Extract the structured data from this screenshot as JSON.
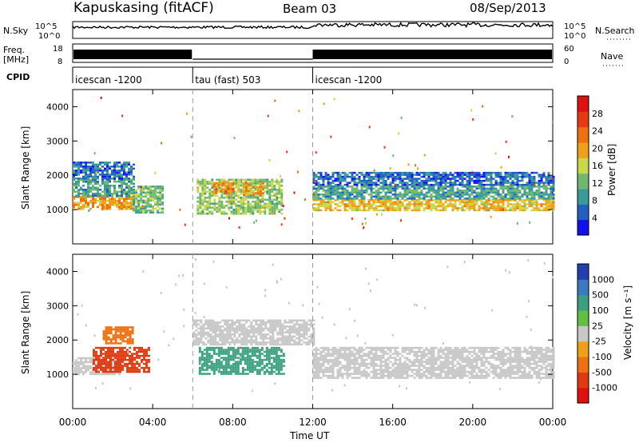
{
  "header": {
    "station": "Kapuskasing (fitACF)",
    "beam": "Beam 03",
    "date": "08/Sep/2013"
  },
  "noise_panel": {
    "left_label": "N.Sky",
    "right_label": "N.Search",
    "ticks_left": [
      "10^5",
      "10^0"
    ],
    "ticks_right": [
      "10^5",
      "10^0"
    ]
  },
  "freq_panel": {
    "left_label_line1": "Freq.",
    "left_label_line2": "[MHz]",
    "ticks_left": [
      "18",
      "8"
    ],
    "ticks_right": [
      "60",
      "0"
    ],
    "right_label": "Nave"
  },
  "cpid": {
    "label": "CPID",
    "segments": [
      {
        "name": "icescan -1200",
        "start_h": 0,
        "end_h": 6
      },
      {
        "name": "tau (fast) 503",
        "start_h": 6,
        "end_h": 12
      },
      {
        "name": "icescan -1200",
        "start_h": 12,
        "end_h": 24
      }
    ]
  },
  "x_axis": {
    "label": "Time UT",
    "ticks": [
      "00:00",
      "04:00",
      "08:00",
      "12:00",
      "16:00",
      "20:00",
      "00:00"
    ]
  },
  "power_panel": {
    "ylabel": "Slant Range [km]",
    "yticks": [
      "1000",
      "2000",
      "3000",
      "4000"
    ],
    "colorbar_label": "Power [dB]",
    "colorbar_ticks": [
      "4",
      "8",
      "12",
      "16",
      "20",
      "24",
      "28"
    ],
    "colors": [
      "#1010f0",
      "#2060c0",
      "#3a9a9a",
      "#6fb870",
      "#c8d84a",
      "#f0a018",
      "#f07010",
      "#e83a10",
      "#e01010"
    ]
  },
  "velocity_panel": {
    "ylabel": "Slant Range [km]",
    "yticks": [
      "1000",
      "2000",
      "3000",
      "4000"
    ],
    "colorbar_label": "Velocity [m s⁻¹]",
    "colorbar_ticks": [
      "1000",
      "500",
      "100",
      "25",
      "-25",
      "-100",
      "-500",
      "-1000"
    ],
    "colors": [
      "#2040b0",
      "#3a7ac0",
      "#3aa080",
      "#60c040",
      "#c8c8c8",
      "#f0a018",
      "#f07010",
      "#e03a10",
      "#e01010"
    ]
  },
  "chart_data": {
    "type": "heatmap",
    "x_unit": "hours UT",
    "xlim": [
      0,
      24
    ],
    "ylim_km": [
      0,
      4500
    ],
    "regions_power_dB": [
      {
        "t0": 0.0,
        "t1": 3.0,
        "r0": 1000,
        "r1": 1400,
        "value": 20
      },
      {
        "t0": 0.0,
        "t1": 3.0,
        "r0": 1400,
        "r1": 1900,
        "value": 10
      },
      {
        "t0": 0.0,
        "t1": 3.0,
        "r0": 1900,
        "r1": 2400,
        "value": 6
      },
      {
        "t0": 3.0,
        "t1": 4.5,
        "r0": 900,
        "r1": 1700,
        "value": 12
      },
      {
        "t0": 6.2,
        "t1": 10.5,
        "r0": 900,
        "r1": 1900,
        "value": 14
      },
      {
        "t0": 7.0,
        "t1": 8.0,
        "r0": 1500,
        "r1": 1800,
        "value": 22
      },
      {
        "t0": 8.5,
        "t1": 9.5,
        "r0": 1400,
        "r1": 1800,
        "value": 20
      },
      {
        "t0": 12.0,
        "t1": 24.0,
        "r0": 1000,
        "r1": 1300,
        "value": 18
      },
      {
        "t0": 12.0,
        "t1": 24.0,
        "r0": 1300,
        "r1": 1700,
        "value": 10
      },
      {
        "t0": 12.0,
        "t1": 24.0,
        "r0": 1700,
        "r1": 2100,
        "value": 6
      }
    ],
    "regions_velocity_ms": [
      {
        "t0": 0.0,
        "t1": 2.5,
        "r0": 1000,
        "r1": 1500,
        "value": 0
      },
      {
        "t0": 1.0,
        "t1": 3.8,
        "r0": 1100,
        "r1": 1800,
        "value": -500
      },
      {
        "t0": 1.5,
        "t1": 3.0,
        "r0": 1900,
        "r1": 2400,
        "value": -100
      },
      {
        "t0": 6.3,
        "t1": 10.5,
        "r0": 1000,
        "r1": 1800,
        "value": 150
      },
      {
        "t0": 6.0,
        "t1": 12.0,
        "r0": 1900,
        "r1": 2600,
        "value": 0
      },
      {
        "t0": 12.0,
        "t1": 24.0,
        "r0": 900,
        "r1": 1800,
        "value": 0
      }
    ]
  }
}
